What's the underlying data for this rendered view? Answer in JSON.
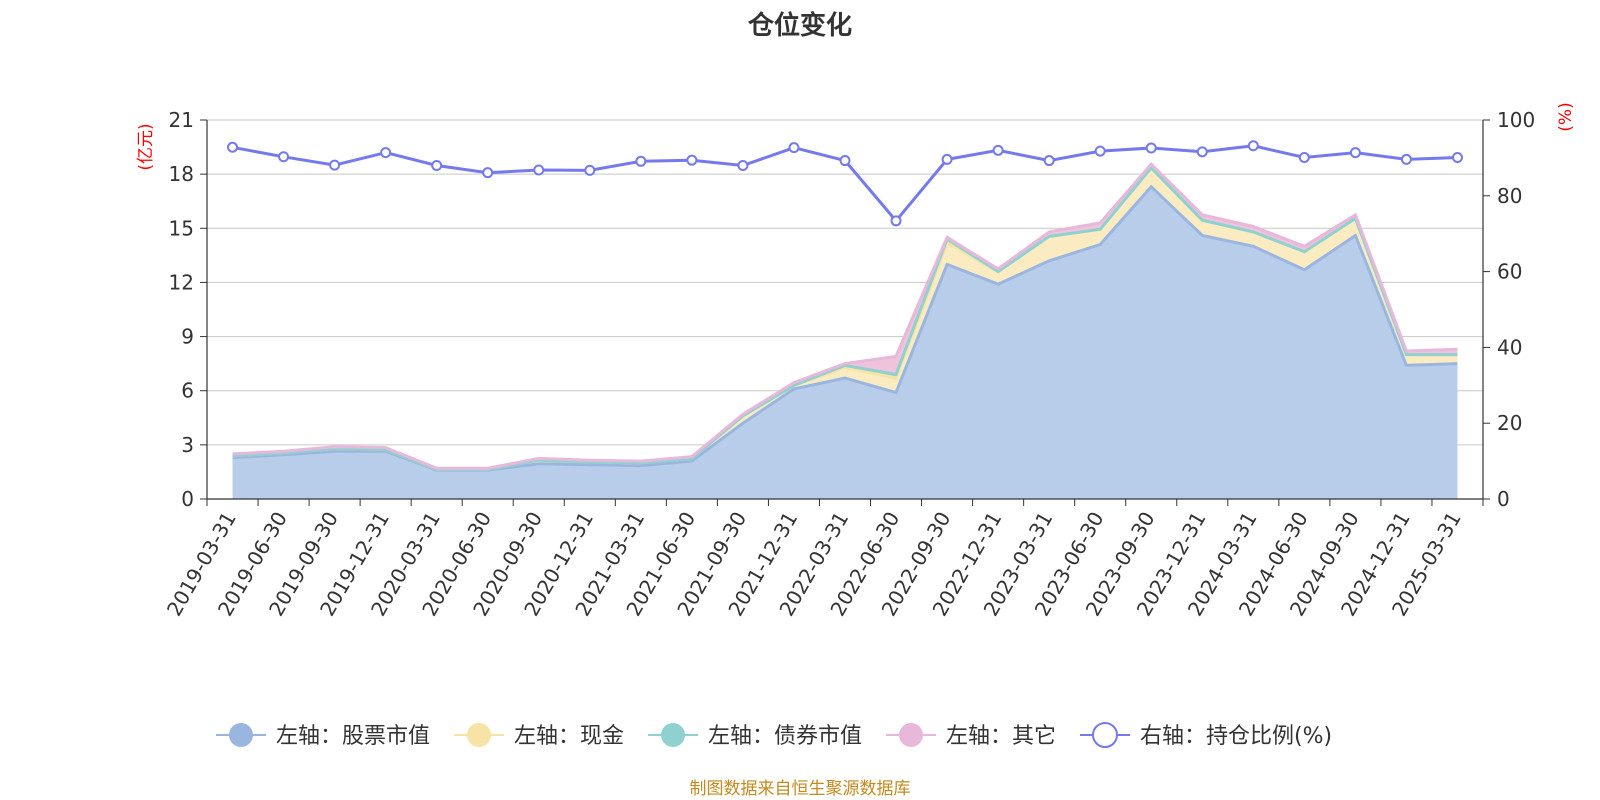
{
  "chart_data": {
    "type": "area",
    "title": "仓位变化",
    "y_left_unit": "(亿元)",
    "y_right_unit": "(%)",
    "y_left_ticks": [
      "0",
      "3",
      "6",
      "9",
      "12",
      "15",
      "18",
      "21"
    ],
    "y_right_ticks": [
      "0",
      "20",
      "40",
      "60",
      "80",
      "100"
    ],
    "ylim_left": [
      0,
      21
    ],
    "ylim_right": [
      0,
      100
    ],
    "grid": true,
    "legend_position": "bottom",
    "categories": [
      "2019-03-31",
      "2019-06-30",
      "2019-09-30",
      "2019-12-31",
      "2020-03-31",
      "2020-06-30",
      "2020-09-30",
      "2020-12-31",
      "2021-03-31",
      "2021-06-30",
      "2021-09-30",
      "2021-12-31",
      "2022-03-31",
      "2022-06-30",
      "2022-09-30",
      "2022-12-31",
      "2023-03-31",
      "2023-06-30",
      "2023-09-30",
      "2023-12-31",
      "2024-03-31",
      "2024-06-30",
      "2024-09-30",
      "2024-12-31",
      "2025-03-31"
    ],
    "series": [
      {
        "name": "左轴：股票市值",
        "axis": "left",
        "color": "#9ab6e0",
        "fill": "#b8cdea",
        "values": [
          2.3,
          2.45,
          2.65,
          2.65,
          1.6,
          1.6,
          1.95,
          1.9,
          1.85,
          2.1,
          4.2,
          6.1,
          6.7,
          5.9,
          13.0,
          11.9,
          13.2,
          14.1,
          17.3,
          14.6,
          14.0,
          12.7,
          14.6,
          7.4,
          7.5
        ]
      },
      {
        "name": "左轴：现金",
        "axis": "left",
        "color": "#f6e3a5",
        "fill": "#faebc0",
        "values": [
          0.1,
          0.1,
          0.15,
          0.1,
          0.05,
          0.05,
          0.2,
          0.15,
          0.15,
          0.15,
          0.4,
          0.2,
          0.6,
          0.8,
          1.2,
          0.7,
          1.35,
          0.85,
          1.05,
          0.85,
          0.8,
          1.0,
          0.95,
          0.6,
          0.5
        ]
      },
      {
        "name": "左轴：债券市值",
        "axis": "left",
        "color": "#8fd1d1",
        "fill": "#a5dcd6",
        "values": [
          0,
          0,
          0,
          0,
          0,
          0,
          0,
          0,
          0,
          0,
          0,
          0,
          0.1,
          0.2,
          0.2,
          0,
          0,
          0,
          0,
          0,
          0,
          0,
          0,
          0,
          0
        ]
      },
      {
        "name": "左轴：其它",
        "axis": "left",
        "color": "#e8b8da",
        "fill": "#efc3dc",
        "values": [
          0.1,
          0.1,
          0.1,
          0.1,
          0.05,
          0.05,
          0.1,
          0.1,
          0.1,
          0.1,
          0.1,
          0.15,
          0.1,
          1.0,
          0.1,
          0.15,
          0.25,
          0.35,
          0.2,
          0.3,
          0.3,
          0.3,
          0.2,
          0.2,
          0.3
        ]
      },
      {
        "name": "右轴：持仓比例(%)",
        "axis": "right",
        "color": "#7479ee",
        "values": [
          92.8,
          90.3,
          88.1,
          91.4,
          88.0,
          86.1,
          86.8,
          86.7,
          89.1,
          89.4,
          88.0,
          92.7,
          89.3,
          73.4,
          89.6,
          92.0,
          89.3,
          91.8,
          92.6,
          91.6,
          93.2,
          90.1,
          91.4,
          89.6,
          90.1
        ]
      }
    ]
  },
  "source_note": "制图数据来自恒生聚源数据库"
}
